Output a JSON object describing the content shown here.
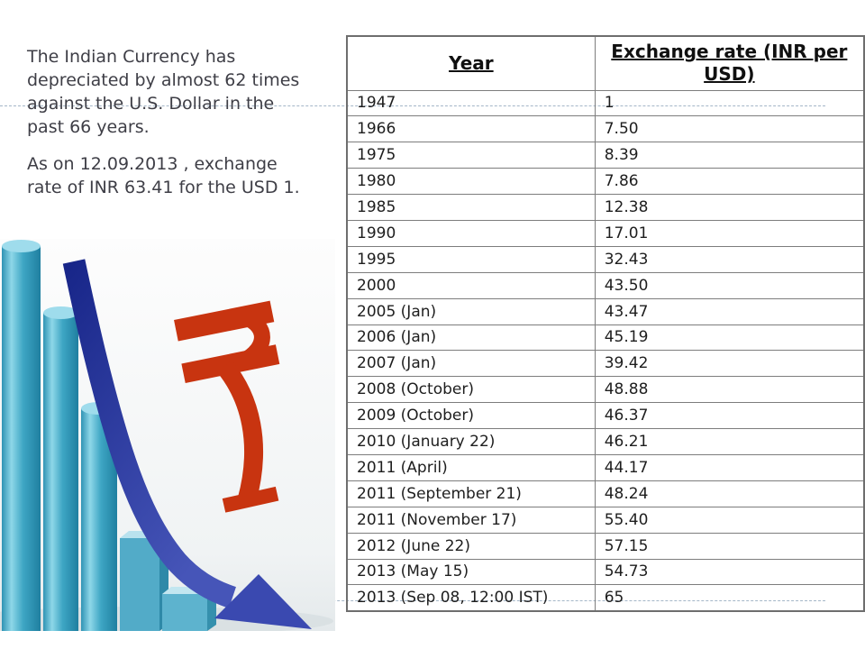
{
  "slide": {
    "narrative": {
      "paragraph1": "The Indian Currency has depreciated by almost 62 times against the U.S. Dollar in the past 66 years.",
      "paragraph2": "As on 12.09.2013 , exchange rate of INR 63.41 for the USD 1."
    },
    "illustration": {
      "icons": {
        "bars": "declining-bars-icon",
        "arrow": "downward-trend-arrow-icon",
        "rupee": "rupee-symbol-icon"
      },
      "bar_color": "#4aa9c4",
      "arrow_color": "#2531a3",
      "rupee_color": "#c83410"
    },
    "guide_line_color": "#a4b6c8"
  },
  "table": {
    "headers": [
      "Year",
      "Exchange rate (INR per USD)"
    ],
    "border_color": "#7d7d7d",
    "rows": [
      [
        "1947",
        "1"
      ],
      [
        "1966",
        "7.50"
      ],
      [
        "1975",
        "8.39"
      ],
      [
        "1980",
        "7.86"
      ],
      [
        "1985",
        "12.38"
      ],
      [
        "1990",
        "17.01"
      ],
      [
        "1995",
        "32.43"
      ],
      [
        "2000",
        "43.50"
      ],
      [
        "2005 (Jan)",
        "43.47"
      ],
      [
        "2006 (Jan)",
        "45.19"
      ],
      [
        "2007 (Jan)",
        "39.42"
      ],
      [
        "2008 (October)",
        "48.88"
      ],
      [
        "2009 (October)",
        "46.37"
      ],
      [
        "2010 (January 22)",
        "46.21"
      ],
      [
        "2011 (April)",
        "44.17"
      ],
      [
        "2011 (September 21)",
        "48.24"
      ],
      [
        "2011 (November 17)",
        "55.40"
      ],
      [
        "2012 (June 22)",
        "57.15"
      ],
      [
        "2013 (May 15)",
        "54.73"
      ],
      [
        "2013 (Sep 08, 12:00 IST)",
        "65"
      ]
    ]
  }
}
